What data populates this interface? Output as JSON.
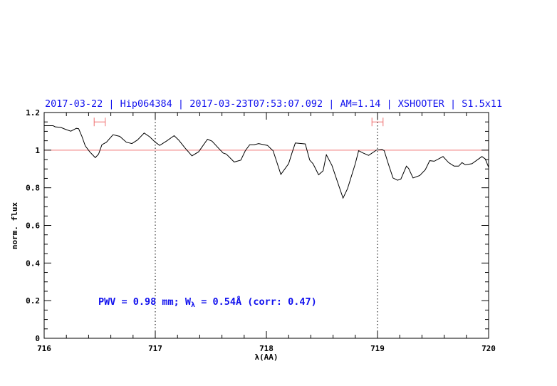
{
  "chart_data": {
    "type": "line",
    "title": "2017-03-22 | Hip064384 | 2017-03-23T07:53:07.092 | AM=1.14 | XSHOOTER | S1.5x11",
    "xlabel": "λ(AA)",
    "ylabel": "norm. flux",
    "xlim": [
      716,
      720
    ],
    "ylim": [
      0,
      1.2
    ],
    "xticks": [
      716,
      717,
      718,
      719,
      720
    ],
    "xtick_labels": [
      "716",
      "717",
      "718",
      "719",
      "720"
    ],
    "yticks": [
      0,
      0.2,
      0.4,
      0.6,
      0.8,
      1,
      1.2
    ],
    "ytick_labels": [
      "0",
      "0.2",
      "0.4",
      "0.6",
      "0.8",
      "1",
      "1.2"
    ],
    "reference_line": 1.0,
    "vertical_markers": [
      717,
      719
    ],
    "error_bars": [
      {
        "x": [
          716.45,
          716.55
        ],
        "y": 1.15
      },
      {
        "x": [
          718.95,
          719.05
        ],
        "y": 1.15
      }
    ],
    "annotation": {
      "prefix": "PWV = 0.98 mm; W",
      "sub": "λ",
      "suffix": " = 0.54Å (corr: 0.47)"
    },
    "colors": {
      "title": "#1010ee",
      "curve": "#000000",
      "reference_line": "#f07070",
      "error_bar": "#f07070",
      "annotation": "#1010ee"
    },
    "series": [
      {
        "x": [
          716.0,
          716.03,
          716.08,
          716.1,
          716.15,
          716.19,
          716.24,
          716.29,
          716.31,
          716.34,
          716.37,
          716.41,
          716.46,
          716.49,
          716.52,
          716.56,
          716.62,
          716.68,
          716.74,
          716.79,
          716.84,
          716.9,
          716.95,
          717.0,
          717.04,
          717.1,
          717.17,
          717.21,
          717.27,
          717.33,
          717.39,
          717.47,
          717.51,
          717.57,
          717.61,
          717.64,
          717.71,
          717.77,
          717.81,
          717.85,
          717.89,
          717.93,
          718.01,
          718.04,
          718.06,
          718.13,
          718.2,
          718.23,
          718.26,
          718.35,
          718.39,
          718.42,
          718.47,
          718.51,
          718.54,
          718.59,
          718.69,
          718.73,
          718.8,
          718.83,
          718.87,
          718.92,
          718.99,
          719.04,
          719.06,
          719.1,
          719.14,
          719.18,
          719.21,
          719.26,
          719.28,
          719.32,
          719.38,
          719.43,
          719.47,
          719.51,
          719.59,
          719.64,
          719.69,
          719.73,
          719.76,
          719.79,
          719.85,
          719.94,
          719.97,
          720.0
        ],
        "y": [
          1.13,
          1.13,
          1.13,
          1.124,
          1.121,
          1.111,
          1.101,
          1.116,
          1.114,
          1.073,
          1.023,
          0.991,
          0.96,
          0.979,
          1.029,
          1.042,
          1.082,
          1.073,
          1.042,
          1.035,
          1.054,
          1.091,
          1.071,
          1.042,
          1.025,
          1.048,
          1.077,
          1.054,
          1.01,
          0.97,
          0.991,
          1.058,
          1.048,
          1.01,
          0.985,
          0.979,
          0.937,
          0.947,
          0.997,
          1.029,
          1.029,
          1.035,
          1.025,
          1.008,
          0.997,
          0.871,
          0.928,
          0.985,
          1.038,
          1.033,
          0.947,
          0.928,
          0.869,
          0.89,
          0.975,
          0.919,
          0.745,
          0.795,
          0.928,
          0.997,
          0.985,
          0.972,
          1.0,
          1.004,
          0.997,
          0.922,
          0.852,
          0.84,
          0.846,
          0.915,
          0.903,
          0.852,
          0.865,
          0.896,
          0.944,
          0.941,
          0.966,
          0.934,
          0.915,
          0.915,
          0.934,
          0.922,
          0.928,
          0.966,
          0.953,
          0.909
        ]
      }
    ]
  }
}
